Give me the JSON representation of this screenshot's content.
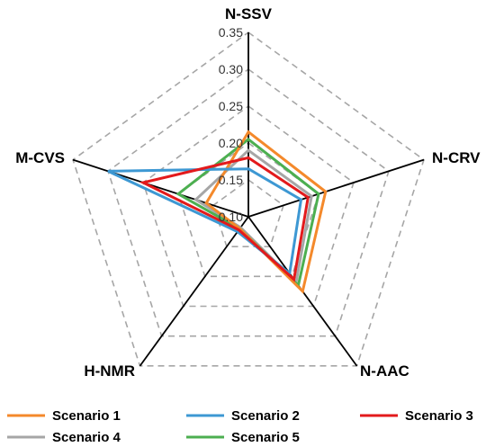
{
  "chart_data": {
    "type": "radar",
    "axes": [
      "N-SSV",
      "N-CRV",
      "N-AAC",
      "H-NMR",
      "M-CVS"
    ],
    "radial_range": [
      0.1,
      0.35
    ],
    "ticks": [
      "0.10",
      "0.15",
      "0.20",
      "0.25",
      "0.30",
      "0.35"
    ],
    "grid": "dashed",
    "legend_position": "bottom",
    "series": [
      {
        "name": "Scenario 1",
        "color": "#f4892b",
        "values": [
          0.215,
          0.21,
          0.225,
          0.12,
          0.16
        ]
      },
      {
        "name": "Scenario 2",
        "color": "#3d98d3",
        "values": [
          0.165,
          0.175,
          0.195,
          0.125,
          0.3
        ]
      },
      {
        "name": "Scenario 3",
        "color": "#e31a1c",
        "values": [
          0.18,
          0.185,
          0.205,
          0.122,
          0.25
        ]
      },
      {
        "name": "Scenario 4",
        "color": "#a6a6a6",
        "values": [
          0.19,
          0.19,
          0.21,
          0.118,
          0.175
        ]
      },
      {
        "name": "Scenario 5",
        "color": "#4caf50",
        "values": [
          0.205,
          0.2,
          0.215,
          0.12,
          0.2
        ]
      }
    ]
  }
}
